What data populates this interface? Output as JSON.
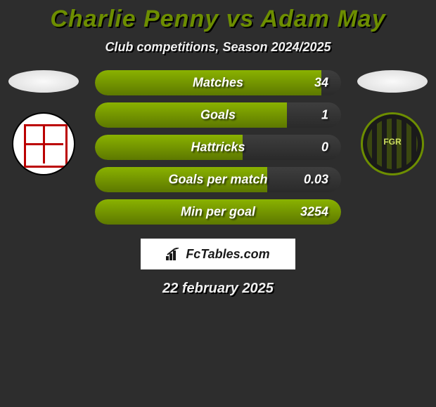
{
  "title": "Charlie Penny vs Adam May",
  "subtitle": "Club competitions, Season 2024/2025",
  "date": "22 february 2025",
  "brand": "FcTables.com",
  "left_club_name": "Woking",
  "right_club_name": "Forest Green Rovers",
  "colors": {
    "accent": "#6d8e00",
    "background": "#2d2d2d",
    "bar_fill_top": "#8ab200",
    "bar_fill_bottom": "#5d7800",
    "bar_track_top": "#3e3e3e",
    "bar_track_bottom": "#2a2a2a",
    "text": "#f0f0f0",
    "title_shadow": "#000000"
  },
  "typography": {
    "title_size": 34,
    "subtitle_size": 18,
    "stat_size": 18,
    "date_size": 20,
    "style": "italic",
    "weight": "bold"
  },
  "stats": [
    {
      "label": "Matches",
      "value": "34",
      "fill_pct": 92
    },
    {
      "label": "Goals",
      "value": "1",
      "fill_pct": 78
    },
    {
      "label": "Hattricks",
      "value": "0",
      "fill_pct": 60
    },
    {
      "label": "Goals per match",
      "value": "0.03",
      "fill_pct": 70
    },
    {
      "label": "Min per goal",
      "value": "3254",
      "fill_pct": 100
    }
  ]
}
